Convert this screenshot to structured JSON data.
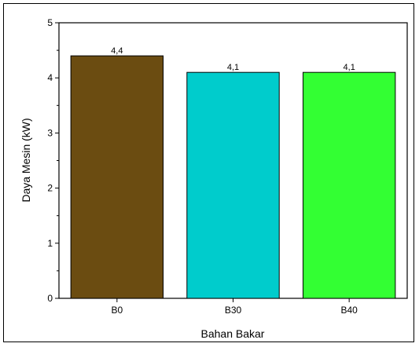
{
  "chart_data": {
    "type": "bar",
    "categories": [
      "B0",
      "B30",
      "B40"
    ],
    "values": [
      4.4,
      4.1,
      4.1
    ],
    "data_labels": [
      "4,4",
      "4,1",
      "4,1"
    ],
    "colors": [
      "#6b4c11",
      "#00cccc",
      "#33ff33"
    ],
    "title": "",
    "xlabel": "Bahan Bakar",
    "ylabel": "Daya Mesin (kW)",
    "ylim": [
      0,
      5
    ],
    "yticks": [
      0,
      1,
      2,
      3,
      4,
      5
    ],
    "grid": false,
    "legend": "none"
  }
}
